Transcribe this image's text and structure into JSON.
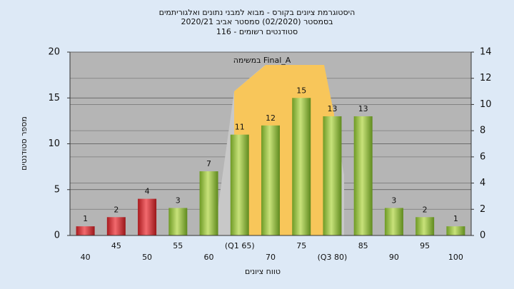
{
  "chart_data": {
    "type": "bar",
    "title": [
      "היסטוגרמת ציונים בקורס - מבוא למבני נתונים ואלגוריתמים",
      "בסמסטר (02/2020)  סמסטר אביב 2020/21",
      "סטודנטים רשומים - 116"
    ],
    "annotation": "במשימה  Final_A",
    "x_label": "טווח ציונים",
    "y_label": "מספר סטודנטים",
    "categories": [
      "40",
      "45",
      "50",
      "55",
      "60",
      "(Q1 65)",
      "70",
      "75",
      "(Q3 80)",
      "85",
      "90",
      "95",
      "100"
    ],
    "values": [
      1,
      2,
      4,
      3,
      7,
      11,
      12,
      15,
      13,
      13,
      3,
      2,
      1
    ],
    "colors": [
      "#d8262b",
      "#d8262b",
      "#d8262b",
      "#8fbf3a",
      "#8fbf3a",
      "#8fbf3a",
      "#8fbf3a",
      "#8fbf3a",
      "#8fbf3a",
      "#8fbf3a",
      "#8fbf3a",
      "#8fbf3a",
      "#8fbf3a"
    ],
    "ylim": [
      0,
      20
    ],
    "yticks": [
      0,
      5,
      10,
      15,
      20
    ],
    "y2lim": [
      0,
      14
    ],
    "y2ticks": [
      0,
      2,
      4,
      6,
      8,
      10,
      12,
      14
    ],
    "grid": true
  }
}
